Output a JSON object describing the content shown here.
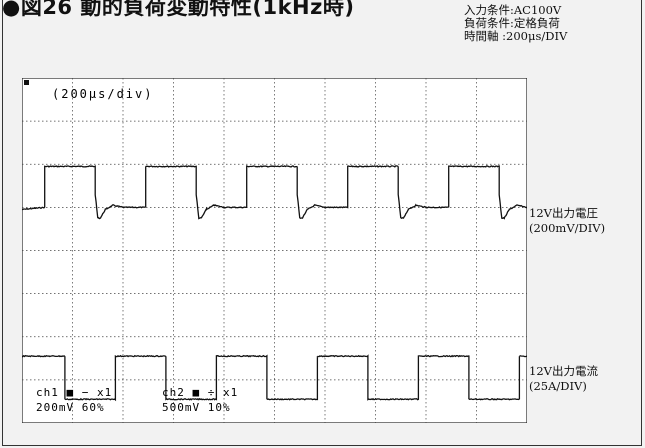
{
  "title": "●図26 動的負荷変動特性(1kHz時)",
  "conditions": [
    "入力条件:AC100V",
    "負荷条件:定格負荷",
    "時間軸 :200μs/DIV"
  ],
  "side_labels": {
    "voltage": [
      "12V出力電圧",
      "(200mV/DIV)"
    ],
    "current": [
      "12V出力電流",
      "(25A/DIV)"
    ]
  },
  "scope": {
    "time_scale": "(200μs/div)",
    "ch1_setting": "ch1 ■ − x1",
    "ch1_values": "200mV 60%",
    "ch2_setting": "ch2 ■ ÷ x1",
    "ch2_values": "500mV 10%"
  },
  "chart_data": {
    "type": "line",
    "title": "●図26 動的負荷変動特性(1kHz時)",
    "x_unit": "div",
    "xlim": [
      0,
      10
    ],
    "ylim": [
      -4,
      4
    ],
    "grid": true,
    "series": [
      {
        "name": "12V出力電圧",
        "color": "#111111",
        "x": [
          0,
          0.45,
          0.45,
          1.45,
          1.45,
          1.5,
          1.55,
          1.65,
          1.8,
          2.0,
          2.45,
          2.45,
          3.45,
          3.45,
          3.5,
          3.55,
          3.65,
          3.8,
          4.0,
          4.45,
          4.45,
          5.45,
          5.45,
          5.5,
          5.55,
          5.65,
          5.8,
          6.0,
          6.45,
          6.45,
          7.45,
          7.45,
          7.5,
          7.55,
          7.65,
          7.8,
          8.0,
          8.45,
          8.45,
          9.45,
          9.45,
          9.5,
          9.55,
          9.65,
          9.8,
          10.0
        ],
        "y": [
          0.95,
          1.0,
          1.95,
          1.95,
          1.3,
          0.75,
          0.75,
          0.95,
          1.05,
          1.0,
          1.0,
          1.95,
          1.95,
          1.3,
          0.75,
          0.75,
          0.95,
          1.05,
          1.0,
          1.0,
          1.95,
          1.95,
          1.3,
          0.75,
          0.75,
          0.95,
          1.05,
          1.0,
          1.0,
          1.95,
          1.95,
          1.3,
          0.75,
          0.75,
          0.95,
          1.05,
          1.0,
          1.0,
          1.95,
          1.95,
          1.3,
          0.75,
          0.75,
          0.95,
          1.05,
          1.0
        ]
      },
      {
        "name": "12V出力電流",
        "color": "#111111",
        "x": [
          0,
          0.85,
          0.85,
          1.85,
          1.85,
          2.85,
          2.85,
          3.85,
          3.85,
          4.85,
          4.85,
          5.85,
          5.85,
          6.85,
          6.85,
          7.85,
          7.85,
          8.85,
          8.85,
          9.85,
          9.85,
          10.0
        ],
        "y": [
          -2.45,
          -2.45,
          -3.45,
          -3.45,
          -2.45,
          -2.45,
          -3.45,
          -3.45,
          -2.45,
          -2.45,
          -3.45,
          -3.45,
          -2.45,
          -2.45,
          -3.45,
          -3.45,
          -2.45,
          -2.45,
          -3.45,
          -3.45,
          -2.45,
          -2.45
        ]
      }
    ]
  },
  "colors": {
    "background": "#f2f2f2",
    "screen": "#ffffff",
    "grid": "#444444",
    "trace": "#111111"
  }
}
